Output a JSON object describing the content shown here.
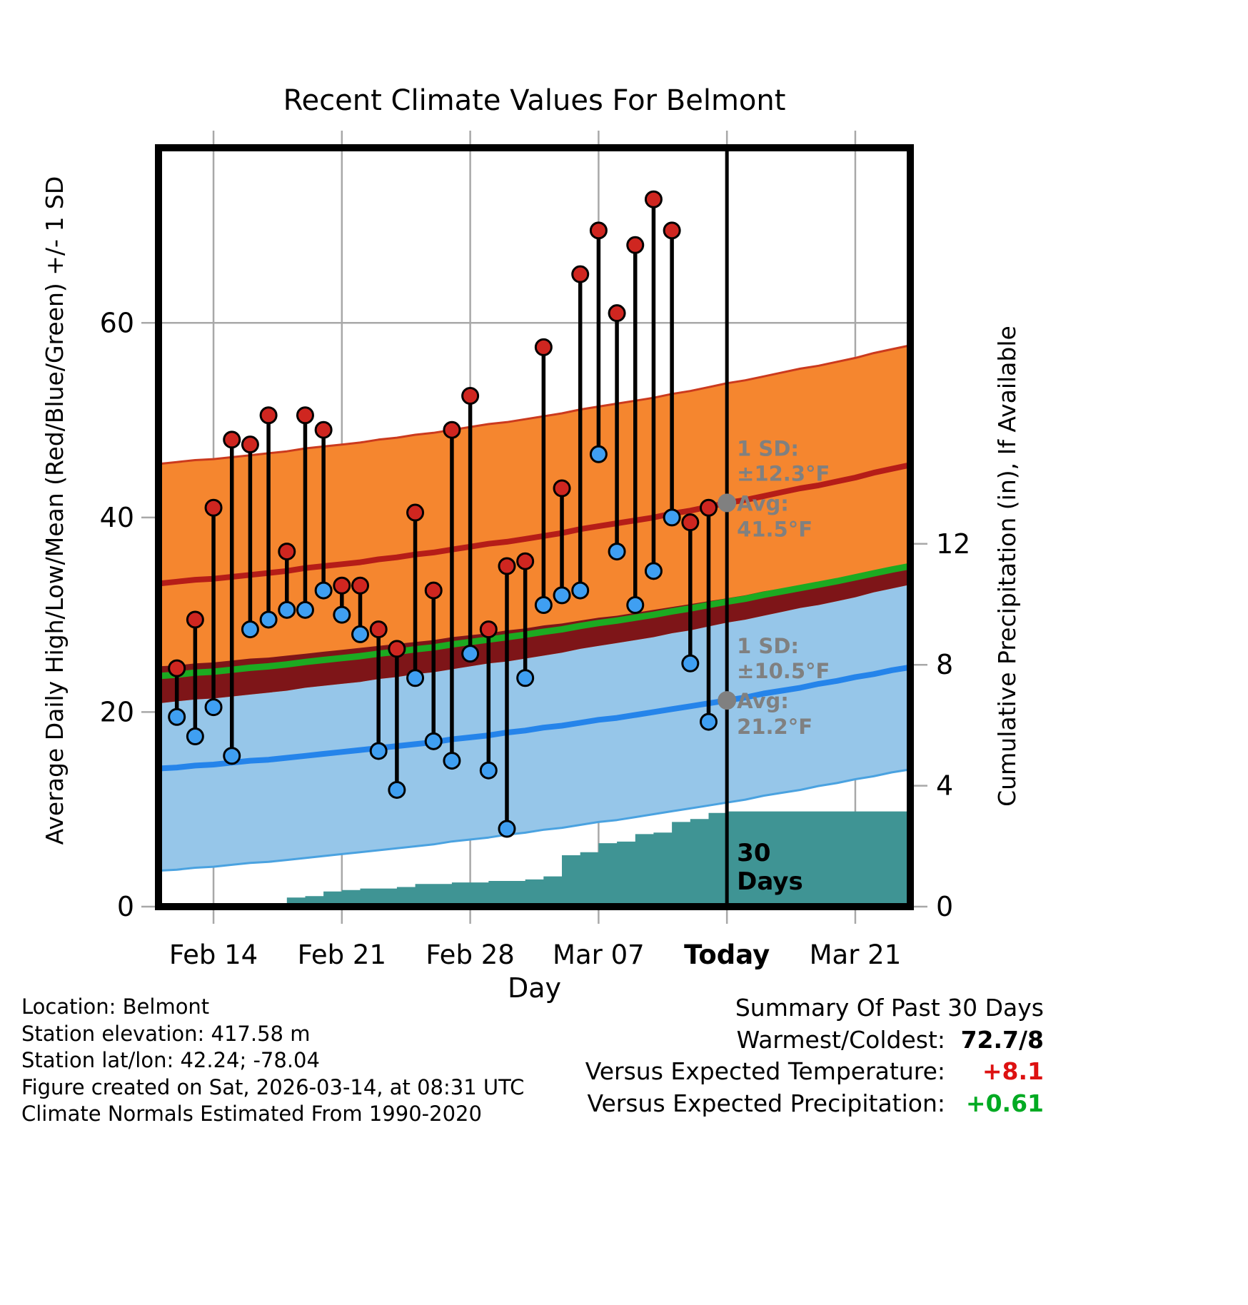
{
  "title": "Recent Climate Values For Belmont",
  "axes": {
    "left_label": "Average Daily High/Low/Mean (Red/Blue/Green) +/- 1 SD",
    "right_label": "Cumulative Precipitation (in), If Available",
    "x_label": "Day"
  },
  "chart_data": {
    "type": "line",
    "x_domain_days": 41,
    "temp_ylim": [
      0,
      78
    ],
    "precip_axis_max": 25.1,
    "left_ticks": [
      0,
      20,
      40,
      60
    ],
    "right_ticks": [
      0,
      4,
      8,
      12
    ],
    "x_ticks": [
      {
        "label": "Feb 14",
        "day": 3
      },
      {
        "label": "Feb 21",
        "day": 10
      },
      {
        "label": "Feb 28",
        "day": 17
      },
      {
        "label": "Mar 07",
        "day": 24
      },
      {
        "label": "Today",
        "day": 31,
        "bold": true
      },
      {
        "label": "Mar 21",
        "day": 38
      }
    ],
    "sd": {
      "high": 12.3,
      "low": 10.5
    },
    "today": {
      "day": 31,
      "high_avg": 41.5,
      "low_avg": 21.2
    },
    "normal_high_avg": [
      33.2,
      33.4,
      33.6,
      33.7,
      33.9,
      34.1,
      34.3,
      34.5,
      34.8,
      35.0,
      35.2,
      35.4,
      35.7,
      35.9,
      36.2,
      36.4,
      36.7,
      37.0,
      37.3,
      37.5,
      37.8,
      38.1,
      38.4,
      38.8,
      39.1,
      39.4,
      39.7,
      40.0,
      40.4,
      40.7,
      41.1,
      41.5,
      41.8,
      42.2,
      42.6,
      43.0,
      43.3,
      43.7,
      44.1,
      44.6,
      45.0,
      45.4
    ],
    "normal_low_avg": [
      14.2,
      14.3,
      14.5,
      14.6,
      14.8,
      15.0,
      15.1,
      15.3,
      15.5,
      15.7,
      15.9,
      16.1,
      16.3,
      16.5,
      16.7,
      16.9,
      17.2,
      17.4,
      17.6,
      17.9,
      18.1,
      18.4,
      18.6,
      18.9,
      19.2,
      19.4,
      19.7,
      20.0,
      20.3,
      20.6,
      20.9,
      21.2,
      21.5,
      21.9,
      22.2,
      22.5,
      22.9,
      23.2,
      23.6,
      23.9,
      24.3,
      24.6
    ],
    "precip_cumulative": [
      0,
      0,
      0,
      0,
      0,
      0.05,
      0.1,
      0.3,
      0.35,
      0.5,
      0.55,
      0.6,
      0.6,
      0.65,
      0.75,
      0.75,
      0.8,
      0.8,
      0.85,
      0.85,
      0.9,
      1.0,
      1.7,
      1.8,
      2.1,
      2.15,
      2.4,
      2.45,
      2.8,
      2.9,
      3.1,
      3.15,
      3.15,
      3.15,
      3.15,
      3.15,
      3.15,
      3.15,
      3.15,
      3.15,
      3.15,
      3.15
    ],
    "obs_start_day": 1,
    "obs": [
      {
        "date": "Feb 12",
        "high": 24.5,
        "low": 19.5
      },
      {
        "date": "Feb 13",
        "high": 29.5,
        "low": 17.5
      },
      {
        "date": "Feb 14",
        "high": 41.0,
        "low": 20.5
      },
      {
        "date": "Feb 15",
        "high": 48.0,
        "low": 15.5
      },
      {
        "date": "Feb 16",
        "high": 47.5,
        "low": 28.5
      },
      {
        "date": "Feb 17",
        "high": 50.5,
        "low": 29.5
      },
      {
        "date": "Feb 18",
        "high": 36.5,
        "low": 30.5
      },
      {
        "date": "Feb 19",
        "high": 50.5,
        "low": 30.5
      },
      {
        "date": "Feb 20",
        "high": 49.0,
        "low": 32.5
      },
      {
        "date": "Feb 21",
        "high": 33.0,
        "low": 30.0
      },
      {
        "date": "Feb 22",
        "high": 33.0,
        "low": 28.0
      },
      {
        "date": "Feb 23",
        "high": 28.5,
        "low": 16.0
      },
      {
        "date": "Feb 24",
        "high": 26.5,
        "low": 12.0
      },
      {
        "date": "Feb 25",
        "high": 40.5,
        "low": 23.5
      },
      {
        "date": "Feb 26",
        "high": 32.5,
        "low": 17.0
      },
      {
        "date": "Feb 27",
        "high": 49.0,
        "low": 15.0
      },
      {
        "date": "Feb 28",
        "high": 52.5,
        "low": 26.0
      },
      {
        "date": "Mar 01",
        "high": 28.5,
        "low": 14.0
      },
      {
        "date": "Mar 02",
        "high": 35.0,
        "low": 8.0
      },
      {
        "date": "Mar 03",
        "high": 35.5,
        "low": 23.5
      },
      {
        "date": "Mar 04",
        "high": 57.5,
        "low": 31.0
      },
      {
        "date": "Mar 05",
        "high": 43.0,
        "low": 32.0
      },
      {
        "date": "Mar 06",
        "high": 65.0,
        "low": 32.5
      },
      {
        "date": "Mar 07",
        "high": 69.5,
        "low": 46.5
      },
      {
        "date": "Mar 08",
        "high": 61.0,
        "low": 36.5
      },
      {
        "date": "Mar 09",
        "high": 68.0,
        "low": 31.0
      },
      {
        "date": "Mar 10",
        "high": 72.7,
        "low": 34.5
      },
      {
        "date": "Mar 11",
        "high": 69.5,
        "low": 40.0
      },
      {
        "date": "Mar 12",
        "high": 39.5,
        "low": 25.0
      },
      {
        "date": "Mar 13",
        "high": 41.0,
        "low": 19.0
      }
    ]
  },
  "annotations": {
    "high": {
      "lines": [
        "1 SD:",
        "±12.3°F",
        "Avg:",
        " 41.5°F"
      ]
    },
    "low": {
      "lines": [
        "1 SD:",
        "±10.5°F",
        "Avg:",
        " 21.2°F"
      ]
    },
    "period": {
      "lines": [
        "30",
        "Days"
      ]
    }
  },
  "footer": {
    "left_lines": [
      "Location: Belmont",
      "Station elevation: 417.58 m",
      "Station lat/lon: 42.24; -78.04",
      "Figure created on Sat, 2026-03-14, at 08:31 UTC",
      "Climate Normals Estimated From 1990-2020"
    ],
    "summary": {
      "title": "Summary Of Past 30 Days",
      "rows": [
        {
          "label": "Warmest/Coldest:",
          "value": "72.7/8",
          "color": "#000000"
        },
        {
          "label": "Versus Expected Temperature:",
          "value": "+8.1",
          "color": "#dd1111"
        },
        {
          "label": "Versus Expected Precipitation:",
          "value": "+0.61",
          "color": "#00aa22"
        }
      ]
    }
  },
  "colors": {
    "orange_band": "#f5862f",
    "orange_edge": "#cb3a1e",
    "blue_band": "#96c6e9",
    "blue_band_edge": "#4aa2e0",
    "maroon_overlap": "#7e1518",
    "green_mean": "#1caa21",
    "red_avg": "#b51d18",
    "blue_avg": "#2584ea",
    "teal_precip": "#3f9494",
    "red_dot": "#cf2620",
    "blue_dot": "#3f9ff2",
    "gray": "#808080",
    "grid": "#a8a8a8"
  }
}
